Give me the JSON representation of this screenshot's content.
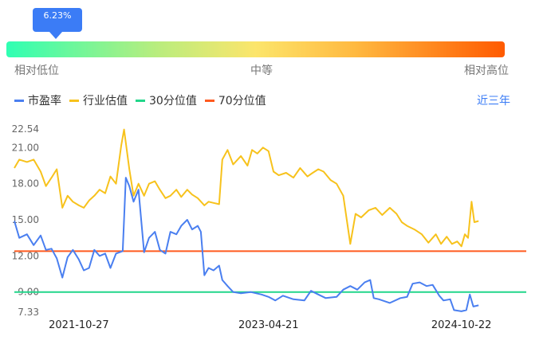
{
  "indicator": {
    "percentile_label": "6.23%",
    "percentile": 0.0623,
    "scale_left": "相对低位",
    "scale_mid": "中等",
    "scale_right": "相对高位"
  },
  "legend": {
    "items": [
      {
        "label": "市盈率",
        "color": "#4a7ff0"
      },
      {
        "label": "行业估值",
        "color": "#f7c21c"
      },
      {
        "label": "30分位值",
        "color": "#22d68a"
      },
      {
        "label": "70分位值",
        "color": "#ff5a1f"
      }
    ],
    "period": "近三年"
  },
  "chart_data": {
    "type": "line",
    "title": "",
    "xlabel": "",
    "ylabel": "",
    "ylim": [
      7.33,
      22.54
    ],
    "y_ticks": [
      "22.54",
      "21.00",
      "18.00",
      "15.00",
      "12.00",
      "9.00",
      "7.33"
    ],
    "x_ticks": [
      "2021-10-27",
      "2023-04-21",
      "2024-10-22"
    ],
    "x_range": [
      "2021-04-26",
      "2025-04-25"
    ],
    "reference_lines": [
      {
        "name": "30分位值",
        "value": 9.0,
        "color": "#22d68a"
      },
      {
        "name": "70分位值",
        "value": 12.4,
        "color": "#ff5a1f"
      }
    ],
    "series": [
      {
        "name": "市盈率",
        "color": "#4a7ff0",
        "points": [
          [
            "2021-04-26",
            14.9
          ],
          [
            "2021-05-10",
            13.5
          ],
          [
            "2021-06-01",
            13.8
          ],
          [
            "2021-06-20",
            12.9
          ],
          [
            "2021-07-10",
            13.7
          ],
          [
            "2021-07-25",
            12.5
          ],
          [
            "2021-08-10",
            12.6
          ],
          [
            "2021-08-25",
            11.8
          ],
          [
            "2021-09-10",
            10.2
          ],
          [
            "2021-09-25",
            11.9
          ],
          [
            "2021-10-10",
            12.5
          ],
          [
            "2021-10-27",
            11.7
          ],
          [
            "2021-11-10",
            10.8
          ],
          [
            "2021-11-25",
            11.0
          ],
          [
            "2021-12-10",
            12.5
          ],
          [
            "2021-12-25",
            12.0
          ],
          [
            "2022-01-10",
            12.2
          ],
          [
            "2022-01-25",
            11.0
          ],
          [
            "2022-02-10",
            12.2
          ],
          [
            "2022-03-01",
            12.4
          ],
          [
            "2022-03-10",
            18.5
          ],
          [
            "2022-03-20",
            17.8
          ],
          [
            "2022-04-01",
            16.5
          ],
          [
            "2022-04-15",
            17.5
          ],
          [
            "2022-05-01",
            12.3
          ],
          [
            "2022-05-15",
            13.5
          ],
          [
            "2022-06-01",
            14.0
          ],
          [
            "2022-06-15",
            12.5
          ],
          [
            "2022-07-01",
            12.2
          ],
          [
            "2022-07-15",
            14.0
          ],
          [
            "2022-08-01",
            13.8
          ],
          [
            "2022-08-15",
            14.5
          ],
          [
            "2022-09-01",
            15.0
          ],
          [
            "2022-09-15",
            14.2
          ],
          [
            "2022-10-01",
            14.5
          ],
          [
            "2022-10-10",
            14.0
          ],
          [
            "2022-10-20",
            10.4
          ],
          [
            "2022-11-01",
            11.0
          ],
          [
            "2022-11-15",
            10.8
          ],
          [
            "2022-12-01",
            11.2
          ],
          [
            "2022-12-10",
            10.0
          ],
          [
            "2022-12-25",
            9.5
          ],
          [
            "2023-01-10",
            9.0
          ],
          [
            "2023-02-01",
            8.9
          ],
          [
            "2023-03-01",
            9.0
          ],
          [
            "2023-04-01",
            8.8
          ],
          [
            "2023-04-21",
            8.6
          ],
          [
            "2023-05-10",
            8.3
          ],
          [
            "2023-06-01",
            8.7
          ],
          [
            "2023-07-01",
            8.4
          ],
          [
            "2023-08-01",
            8.3
          ],
          [
            "2023-08-20",
            9.1
          ],
          [
            "2023-09-10",
            8.8
          ],
          [
            "2023-10-01",
            8.5
          ],
          [
            "2023-11-01",
            8.6
          ],
          [
            "2023-11-20",
            9.2
          ],
          [
            "2023-12-10",
            9.5
          ],
          [
            "2023-12-30",
            9.2
          ],
          [
            "2024-01-20",
            9.8
          ],
          [
            "2024-02-05",
            10.0
          ],
          [
            "2024-02-15",
            8.5
          ],
          [
            "2024-03-01",
            8.4
          ],
          [
            "2024-04-01",
            8.1
          ],
          [
            "2024-05-01",
            8.5
          ],
          [
            "2024-05-20",
            8.6
          ],
          [
            "2024-06-05",
            9.7
          ],
          [
            "2024-06-25",
            9.8
          ],
          [
            "2024-07-15",
            9.5
          ],
          [
            "2024-08-01",
            9.6
          ],
          [
            "2024-08-20",
            8.7
          ],
          [
            "2024-09-01",
            8.3
          ],
          [
            "2024-09-20",
            8.4
          ],
          [
            "2024-10-01",
            7.5
          ],
          [
            "2024-10-22",
            7.4
          ],
          [
            "2024-11-05",
            7.5
          ],
          [
            "2024-11-15",
            8.8
          ],
          [
            "2024-11-25",
            7.8
          ],
          [
            "2024-12-10",
            7.9
          ]
        ]
      },
      {
        "name": "行业估值",
        "color": "#f7c21c",
        "points": [
          [
            "2021-04-26",
            19.3
          ],
          [
            "2021-05-10",
            20.0
          ],
          [
            "2021-06-01",
            19.8
          ],
          [
            "2021-06-20",
            20.0
          ],
          [
            "2021-07-10",
            19.0
          ],
          [
            "2021-07-25",
            17.8
          ],
          [
            "2021-08-10",
            18.5
          ],
          [
            "2021-08-25",
            19.2
          ],
          [
            "2021-09-10",
            16.0
          ],
          [
            "2021-09-25",
            17.0
          ],
          [
            "2021-10-10",
            16.5
          ],
          [
            "2021-10-27",
            16.2
          ],
          [
            "2021-11-10",
            16.0
          ],
          [
            "2021-11-25",
            16.6
          ],
          [
            "2021-12-10",
            17.0
          ],
          [
            "2021-12-25",
            17.5
          ],
          [
            "2022-01-10",
            17.2
          ],
          [
            "2022-01-25",
            18.6
          ],
          [
            "2022-02-10",
            18.0
          ],
          [
            "2022-02-25",
            21.2
          ],
          [
            "2022-03-05",
            22.5
          ],
          [
            "2022-03-20",
            19.2
          ],
          [
            "2022-04-01",
            17.0
          ],
          [
            "2022-04-15",
            18.0
          ],
          [
            "2022-05-01",
            17.0
          ],
          [
            "2022-05-15",
            18.0
          ],
          [
            "2022-06-01",
            18.2
          ],
          [
            "2022-06-15",
            17.5
          ],
          [
            "2022-07-01",
            16.8
          ],
          [
            "2022-07-15",
            17.0
          ],
          [
            "2022-08-01",
            17.5
          ],
          [
            "2022-08-15",
            16.9
          ],
          [
            "2022-09-01",
            17.5
          ],
          [
            "2022-09-15",
            17.1
          ],
          [
            "2022-10-01",
            16.8
          ],
          [
            "2022-10-20",
            16.2
          ],
          [
            "2022-11-01",
            16.5
          ],
          [
            "2022-11-15",
            16.4
          ],
          [
            "2022-12-01",
            16.3
          ],
          [
            "2022-12-10",
            20.0
          ],
          [
            "2022-12-25",
            20.8
          ],
          [
            "2023-01-10",
            19.6
          ],
          [
            "2023-02-01",
            20.3
          ],
          [
            "2023-02-20",
            19.5
          ],
          [
            "2023-03-05",
            20.8
          ],
          [
            "2023-03-20",
            20.5
          ],
          [
            "2023-04-05",
            21.0
          ],
          [
            "2023-04-21",
            20.7
          ],
          [
            "2023-05-05",
            19.0
          ],
          [
            "2023-05-20",
            18.7
          ],
          [
            "2023-06-10",
            18.9
          ],
          [
            "2023-07-01",
            18.5
          ],
          [
            "2023-07-20",
            19.3
          ],
          [
            "2023-08-10",
            18.6
          ],
          [
            "2023-08-25",
            18.9
          ],
          [
            "2023-09-10",
            19.2
          ],
          [
            "2023-09-25",
            19.0
          ],
          [
            "2023-10-15",
            18.3
          ],
          [
            "2023-11-01",
            18.0
          ],
          [
            "2023-11-20",
            17.0
          ],
          [
            "2023-12-10",
            13.0
          ],
          [
            "2023-12-25",
            15.5
          ],
          [
            "2024-01-10",
            15.2
          ],
          [
            "2024-02-01",
            15.8
          ],
          [
            "2024-02-20",
            16.0
          ],
          [
            "2024-03-10",
            15.4
          ],
          [
            "2024-04-01",
            16.0
          ],
          [
            "2024-04-20",
            15.5
          ],
          [
            "2024-05-05",
            14.8
          ],
          [
            "2024-05-20",
            14.5
          ],
          [
            "2024-06-10",
            14.2
          ],
          [
            "2024-07-01",
            13.8
          ],
          [
            "2024-07-20",
            13.1
          ],
          [
            "2024-08-10",
            13.8
          ],
          [
            "2024-08-25",
            13.0
          ],
          [
            "2024-09-10",
            13.6
          ],
          [
            "2024-09-25",
            13.0
          ],
          [
            "2024-10-10",
            13.2
          ],
          [
            "2024-10-22",
            12.8
          ],
          [
            "2024-11-01",
            13.8
          ],
          [
            "2024-11-10",
            13.5
          ],
          [
            "2024-11-20",
            16.5
          ],
          [
            "2024-11-28",
            14.8
          ],
          [
            "2024-12-10",
            14.9
          ]
        ]
      }
    ]
  }
}
